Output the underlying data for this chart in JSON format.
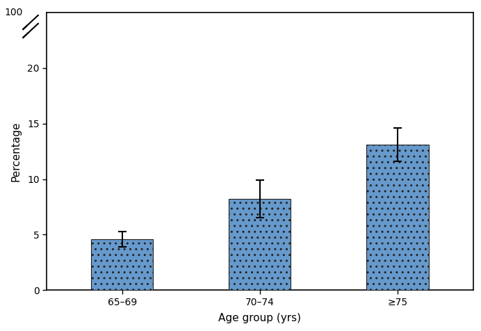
{
  "categories": [
    "65–69",
    "70–74",
    "≥75"
  ],
  "values": [
    4.6,
    8.2,
    13.1
  ],
  "errors_upper": [
    0.7,
    1.7,
    1.5
  ],
  "errors_lower": [
    0.7,
    1.7,
    1.5
  ],
  "bar_color": "#6699CC",
  "bar_edgecolor": "#222222",
  "xlabel": "Age group (yrs)",
  "ylabel": "Percentage",
  "ylim": [
    0,
    25
  ],
  "yticks": [
    0,
    5,
    10,
    15,
    20
  ],
  "background_color": "#ffffff",
  "xlabel_fontsize": 11,
  "ylabel_fontsize": 11,
  "tick_fontsize": 10,
  "bar_width": 0.45,
  "capsize": 4
}
